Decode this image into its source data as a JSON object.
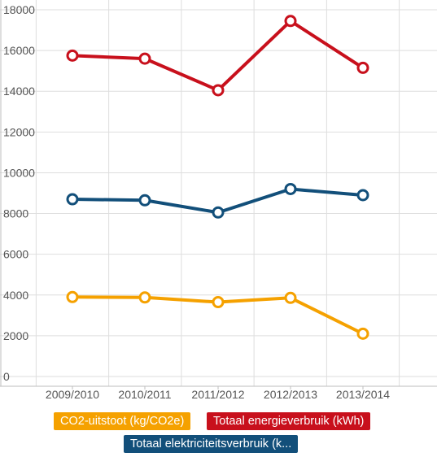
{
  "chart_data": {
    "type": "line",
    "title": "",
    "xlabel": "",
    "ylabel": "",
    "categories": [
      "2009/2010",
      "2010/2011",
      "2011/2012",
      "2012/2013",
      "2013/2014"
    ],
    "ylim": [
      0,
      18000
    ],
    "yticks": [
      0,
      2000,
      4000,
      6000,
      8000,
      10000,
      12000,
      14000,
      16000,
      18000
    ],
    "ytick_labels": [
      "0",
      "2000",
      "4000",
      "6000",
      "8000",
      "10000",
      "12000",
      "14000",
      "16000",
      "18000"
    ],
    "grid": true,
    "legend_position": "bottom",
    "series": [
      {
        "name": "CO2-uitstoot (kg/CO2e)",
        "color": "#f5a100",
        "values": [
          3900,
          3880,
          3650,
          3860,
          2100
        ]
      },
      {
        "name": "Totaal energieverbruik (kWh)",
        "color": "#c8101c",
        "values": [
          15750,
          15600,
          14050,
          17450,
          15150
        ]
      },
      {
        "name": "Totaal elektriciteitsverbruik (k...",
        "color": "#124f7a",
        "values": [
          8700,
          8650,
          8050,
          9200,
          8900
        ]
      }
    ]
  }
}
